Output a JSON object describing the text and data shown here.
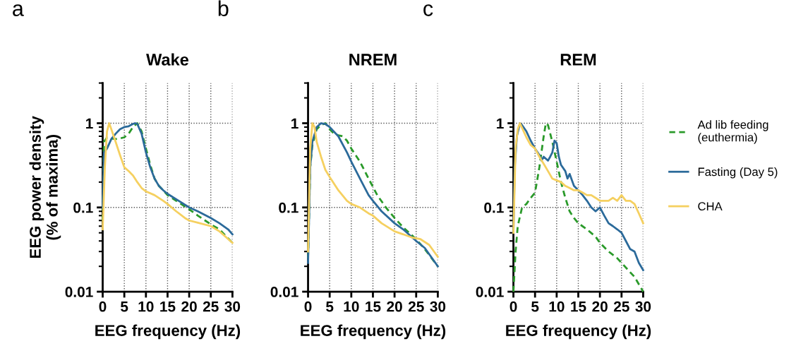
{
  "chart_data": [
    {
      "type": "line",
      "title": "Wake",
      "xlabel": "EEG frequency (Hz)",
      "ylabel": "EEG power density\n(% of maxima)",
      "annotations": [
        "a"
      ],
      "log": "y",
      "grid": true,
      "xlim": [
        0,
        30
      ],
      "xticks": [
        0,
        5,
        10,
        15,
        20,
        25,
        30
      ],
      "ylim": [
        0.01,
        3
      ],
      "yticks": [
        0.01,
        0.1,
        1
      ],
      "series": [
        {
          "color": "#2a9a2a",
          "line_style": "dashed",
          "x": [
            0,
            0.3,
            1,
            2,
            3,
            4,
            5,
            6,
            7,
            8,
            9,
            10,
            11,
            12,
            13,
            14,
            15,
            17,
            20,
            22,
            25,
            27,
            30
          ],
          "values": [
            0.07,
            0.6,
            0.68,
            0.66,
            0.65,
            0.66,
            0.68,
            0.75,
            0.9,
            1.0,
            0.8,
            0.5,
            0.32,
            0.22,
            0.18,
            0.16,
            0.14,
            0.12,
            0.095,
            0.08,
            0.063,
            0.055,
            0.038
          ]
        },
        {
          "color": "#2b6a9a",
          "line_style": "solid",
          "x": [
            0,
            0.3,
            1,
            2,
            3,
            4,
            5,
            6,
            7,
            7.5,
            8,
            9,
            10,
            11,
            12,
            13,
            14,
            15,
            17,
            20,
            22,
            25,
            27,
            29,
            30
          ],
          "values": [
            0.1,
            0.45,
            0.5,
            0.65,
            0.75,
            0.85,
            0.9,
            0.92,
            0.98,
            1.0,
            0.98,
            0.75,
            0.45,
            0.3,
            0.22,
            0.18,
            0.16,
            0.145,
            0.125,
            0.1,
            0.09,
            0.075,
            0.065,
            0.055,
            0.048
          ]
        },
        {
          "color": "#f5d060",
          "line_style": "solid",
          "x": [
            0,
            0.5,
            1,
            1.5,
            2,
            3,
            4,
            5,
            6,
            7,
            8,
            9,
            10,
            12,
            14,
            15,
            17,
            19,
            20,
            22,
            25,
            27,
            30
          ],
          "values": [
            0.055,
            0.3,
            0.8,
            1.0,
            0.85,
            0.6,
            0.42,
            0.3,
            0.27,
            0.24,
            0.2,
            0.17,
            0.155,
            0.14,
            0.12,
            0.11,
            0.09,
            0.075,
            0.07,
            0.066,
            0.06,
            0.052,
            0.038
          ]
        }
      ]
    },
    {
      "type": "line",
      "title": "NREM",
      "xlabel": "EEG frequency (Hz)",
      "annotations": [
        "b"
      ],
      "log": "y",
      "grid": true,
      "xlim": [
        0,
        30
      ],
      "xticks": [
        0,
        5,
        10,
        15,
        20,
        25,
        30
      ],
      "ylim": [
        0.01,
        3
      ],
      "yticks": [
        0.01,
        0.1,
        1
      ],
      "series": [
        {
          "color": "#2a9a2a",
          "line_style": "dashed",
          "x": [
            0,
            0.5,
            1,
            2,
            3,
            4,
            5,
            6,
            7,
            8,
            9,
            10,
            12,
            14,
            16,
            18,
            20,
            22,
            25,
            27,
            30
          ],
          "values": [
            0.025,
            0.3,
            0.55,
            0.85,
            0.95,
            1.0,
            0.85,
            0.75,
            0.72,
            0.7,
            0.62,
            0.5,
            0.35,
            0.22,
            0.14,
            0.1,
            0.075,
            0.058,
            0.042,
            0.032,
            0.02
          ]
        },
        {
          "color": "#2b6a9a",
          "line_style": "solid",
          "x": [
            0,
            0.5,
            1,
            2,
            3,
            4,
            5,
            7,
            9,
            10,
            12,
            14,
            15,
            17,
            20,
            22,
            25,
            27,
            30
          ],
          "values": [
            0.022,
            0.3,
            0.6,
            0.9,
            1.0,
            0.98,
            0.9,
            0.7,
            0.45,
            0.35,
            0.22,
            0.14,
            0.12,
            0.09,
            0.065,
            0.055,
            0.04,
            0.033,
            0.02
          ]
        },
        {
          "color": "#f5d060",
          "line_style": "solid",
          "x": [
            0,
            0.5,
            1,
            1.5,
            2,
            3,
            4,
            5,
            7,
            9,
            10,
            12,
            14,
            15,
            17,
            20,
            22,
            24,
            26,
            28,
            30
          ],
          "values": [
            0.03,
            0.5,
            1.0,
            0.9,
            0.6,
            0.4,
            0.28,
            0.23,
            0.16,
            0.12,
            0.11,
            0.1,
            0.085,
            0.08,
            0.065,
            0.052,
            0.048,
            0.044,
            0.042,
            0.036,
            0.026
          ]
        }
      ]
    },
    {
      "type": "line",
      "title": "REM",
      "xlabel": "EEG frequency (Hz)",
      "annotations": [
        "c"
      ],
      "log": "y",
      "grid": true,
      "legend": "right",
      "xlim": [
        0,
        30
      ],
      "xticks": [
        0,
        5,
        10,
        15,
        20,
        25,
        30
      ],
      "ylim": [
        0.01,
        3
      ],
      "yticks": [
        0.01,
        0.1,
        1
      ],
      "series": [
        {
          "name": "Ad lib feeding\n(euthermia)",
          "color": "#2a9a2a",
          "line_style": "dashed",
          "x": [
            0,
            0.5,
            1,
            2,
            3,
            4,
            5,
            6,
            7,
            7.5,
            8,
            9,
            10,
            11,
            12,
            13,
            14,
            15,
            17,
            19,
            20,
            22,
            24,
            25,
            27,
            28,
            30
          ],
          "values": [
            0.01,
            0.03,
            0.06,
            0.1,
            0.11,
            0.13,
            0.15,
            0.3,
            0.7,
            1.0,
            0.95,
            0.6,
            0.35,
            0.2,
            0.13,
            0.09,
            0.075,
            0.065,
            0.055,
            0.045,
            0.038,
            0.03,
            0.025,
            0.022,
            0.017,
            0.015,
            0.01
          ]
        },
        {
          "name": "Fasting (Day 5)",
          "color": "#2b6a9a",
          "line_style": "solid",
          "x": [
            0,
            0.3,
            0.8,
            1.5,
            2,
            3,
            4,
            5,
            6,
            6.5,
            7,
            8,
            8.5,
            9,
            9.5,
            10,
            10.5,
            11,
            12,
            12.5,
            13,
            14,
            15,
            16,
            17,
            18,
            19,
            20,
            21,
            22,
            23,
            24,
            25,
            26,
            27,
            28,
            29,
            30
          ],
          "values": [
            0.05,
            0.3,
            0.7,
            1.0,
            0.95,
            0.8,
            0.62,
            0.5,
            0.42,
            0.36,
            0.4,
            0.36,
            0.4,
            0.45,
            0.62,
            0.58,
            0.4,
            0.32,
            0.27,
            0.22,
            0.25,
            0.18,
            0.16,
            0.14,
            0.12,
            0.1,
            0.09,
            0.1,
            0.08,
            0.065,
            0.06,
            0.055,
            0.05,
            0.04,
            0.032,
            0.03,
            0.022,
            0.018
          ]
        },
        {
          "name": "CHA",
          "color": "#f5d060",
          "line_style": "solid",
          "x": [
            0,
            0.5,
            1,
            1.5,
            2,
            3,
            4,
            5,
            6,
            7,
            8,
            9,
            10,
            11,
            12,
            13,
            14,
            15,
            16,
            17,
            18,
            19,
            20,
            21,
            22,
            23,
            24,
            25,
            26,
            27,
            28,
            29,
            30
          ],
          "values": [
            0.05,
            0.5,
            0.85,
            1.0,
            0.88,
            0.68,
            0.55,
            0.5,
            0.4,
            0.33,
            0.27,
            0.22,
            0.21,
            0.2,
            0.18,
            0.17,
            0.16,
            0.16,
            0.15,
            0.14,
            0.14,
            0.13,
            0.12,
            0.12,
            0.12,
            0.13,
            0.12,
            0.14,
            0.12,
            0.12,
            0.11,
            0.085,
            0.065
          ]
        }
      ]
    }
  ]
}
